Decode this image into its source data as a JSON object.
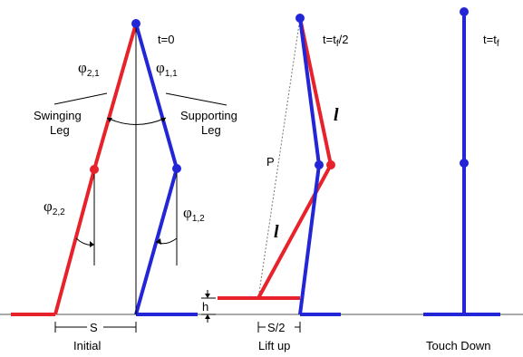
{
  "colors": {
    "swing": "#e8222a",
    "support": "#2226d6",
    "line": "#000000",
    "ground": "#555555"
  },
  "phases": {
    "initial": {
      "time_label": "t=0",
      "caption": "Initial",
      "step_label": "S"
    },
    "liftup": {
      "time_label_main": "t=t",
      "time_label_sub": "f",
      "time_label_tail": "/2",
      "caption": "Lift up",
      "step_label": "S/2",
      "height_label": "h",
      "length_label_upper": "l",
      "length_label_lower": "l",
      "p_label": "P"
    },
    "touchdown": {
      "time_label_main": "t=t",
      "time_label_sub": "f",
      "caption": "Touch Down"
    }
  },
  "angles": {
    "phi21": {
      "symbol": "φ",
      "sub": "2,1"
    },
    "phi11": {
      "symbol": "φ",
      "sub": "1,1"
    },
    "phi22": {
      "symbol": "φ",
      "sub": "2,2"
    },
    "phi12": {
      "symbol": "φ",
      "sub": "1,2"
    }
  },
  "legs": {
    "swinging": [
      "Swinging",
      "Leg"
    ],
    "supporting": [
      "Supporting",
      "Leg"
    ]
  }
}
